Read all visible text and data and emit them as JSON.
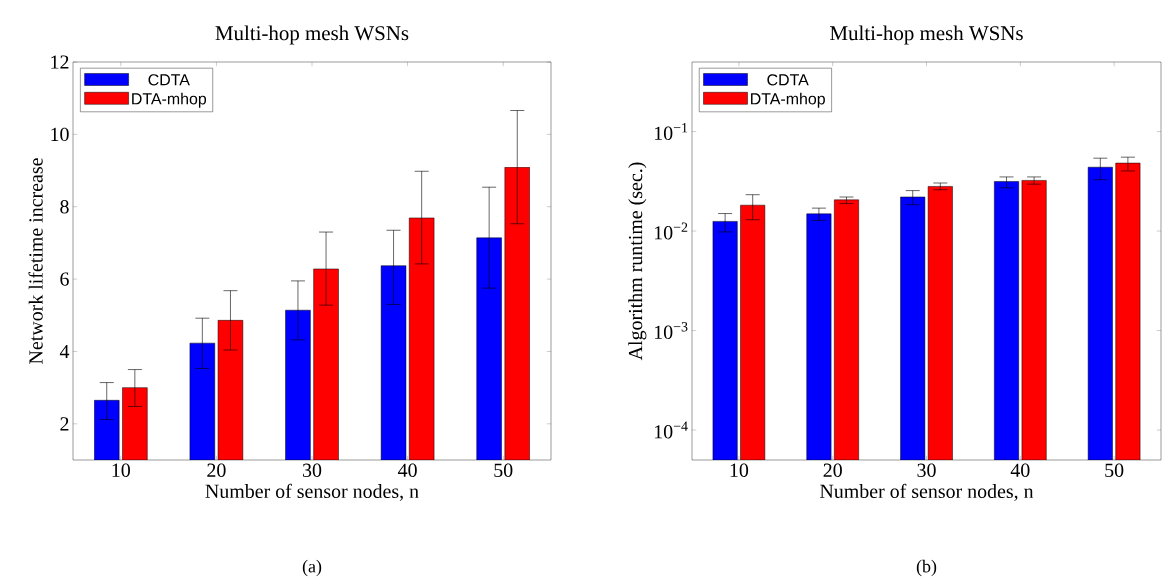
{
  "chart_data": [
    {
      "type": "bar",
      "title": "Multi-hop mesh WSNs",
      "xlabel": "Number of sensor nodes, n",
      "ylabel": "Network lifetime increase",
      "x": [
        10,
        20,
        30,
        40,
        50
      ],
      "xlim": [
        5,
        55
      ],
      "xticks": [
        10,
        20,
        30,
        40,
        50
      ],
      "ylim": [
        1,
        12
      ],
      "yticks": [
        2,
        4,
        6,
        8,
        10,
        12
      ],
      "legend": "top left",
      "series": [
        {
          "name": "CDTA",
          "color": "#0000ff",
          "values": [
            2.65,
            4.23,
            5.14,
            6.37,
            7.14
          ],
          "errors": [
            [
              2.12,
              3.14
            ],
            [
              3.53,
              4.92
            ],
            [
              4.32,
              5.95
            ],
            [
              5.3,
              7.35
            ],
            [
              5.75,
              8.54
            ]
          ]
        },
        {
          "name": "DTA-mhop",
          "color": "#ff0000",
          "values": [
            3.0,
            4.86,
            6.28,
            7.69,
            9.09
          ],
          "errors": [
            [
              2.48,
              3.5
            ],
            [
              4.04,
              5.68
            ],
            [
              5.28,
              7.3
            ],
            [
              6.42,
              8.98
            ],
            [
              7.53,
              10.66
            ]
          ]
        }
      ],
      "annotations": [
        "(a)"
      ]
    },
    {
      "type": "bar",
      "title": "Multi-hop mesh WSNs",
      "xlabel": "Number of sensor nodes, n",
      "ylabel": "Algorithm runtime (sec.)",
      "log": true,
      "x": [
        10,
        20,
        30,
        40,
        50
      ],
      "xlim": [
        5,
        55
      ],
      "xticks": [
        10,
        20,
        30,
        40,
        50
      ],
      "ylim": [
        5e-05,
        0.5
      ],
      "yticks": [
        {
          "value": 0.0001,
          "label": "10$^{−4}$"
        },
        {
          "value": 0.001,
          "label": "10$^{−3}$"
        },
        {
          "value": 0.01,
          "label": "10$^{−2}$"
        },
        {
          "value": 0.1,
          "label": "10$^{−1}$"
        }
      ],
      "legend": "top left",
      "series": [
        {
          "name": "CDTA",
          "color": "#0000ff",
          "values": [
            0.0125,
            0.0149,
            0.022,
            0.0315,
            0.0438
          ],
          "errors": [
            [
              0.0098,
              0.015
            ],
            [
              0.0128,
              0.017
            ],
            [
              0.0184,
              0.0255
            ],
            [
              0.0272,
              0.035
            ],
            [
              0.0328,
              0.054
            ]
          ]
        },
        {
          "name": "DTA-mhop",
          "color": "#ff0000",
          "values": [
            0.0182,
            0.0206,
            0.0281,
            0.0323,
            0.0482
          ],
          "errors": [
            [
              0.013,
              0.0232
            ],
            [
              0.0189,
              0.022
            ],
            [
              0.026,
              0.0304
            ],
            [
              0.0296,
              0.035
            ],
            [
              0.0402,
              0.0553
            ]
          ]
        }
      ],
      "annotations": [
        "(b)"
      ]
    }
  ]
}
